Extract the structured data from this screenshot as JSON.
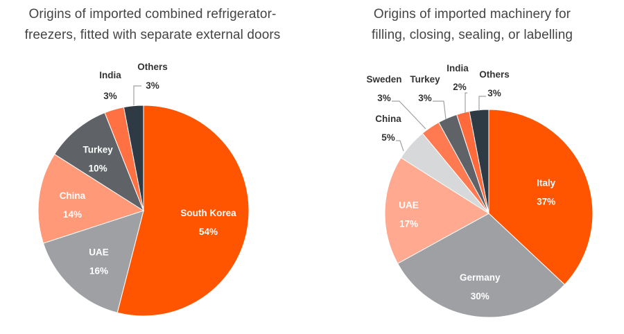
{
  "chart_data": [
    {
      "type": "pie",
      "title_lines": [
        "Origins of imported combined refrigerator-",
        "freezers, fitted with separate external doors"
      ],
      "slices": [
        {
          "name": "South Korea",
          "value": 54,
          "label": "54%",
          "color": "#ff5500"
        },
        {
          "name": "UAE",
          "value": 16,
          "label": "16%",
          "color": "#9ea0a4"
        },
        {
          "name": "China",
          "value": 14,
          "label": "14%",
          "color": "#ff9978"
        },
        {
          "name": "Turkey",
          "value": 10,
          "label": "10%",
          "color": "#5f6368"
        },
        {
          "name": "India",
          "value": 3,
          "label": "3%",
          "color": "#ff7043"
        },
        {
          "name": "Others",
          "value": 3,
          "label": "3%",
          "color": "#2e3a44"
        }
      ]
    },
    {
      "type": "pie",
      "title_lines": [
        "Origins of imported machinery for",
        "filling, closing, sealing, or labelling"
      ],
      "slices": [
        {
          "name": "Italy",
          "value": 37,
          "label": "37%",
          "color": "#ff5500"
        },
        {
          "name": "Germany",
          "value": 30,
          "label": "30%",
          "color": "#9ea0a4"
        },
        {
          "name": "UAE",
          "value": 17,
          "label": "17%",
          "color": "#ffaa90"
        },
        {
          "name": "China",
          "value": 5,
          "label": "5%",
          "color": "#d6d8da"
        },
        {
          "name": "Sweden",
          "value": 3,
          "label": "3%",
          "color": "#ff7a50"
        },
        {
          "name": "Turkey",
          "value": 3,
          "label": "3%",
          "color": "#5f6368"
        },
        {
          "name": "India",
          "value": 2,
          "label": "2%",
          "color": "#ff6a3d"
        },
        {
          "name": "Others",
          "value": 3,
          "label": "3%",
          "color": "#2e3a44"
        }
      ]
    }
  ]
}
